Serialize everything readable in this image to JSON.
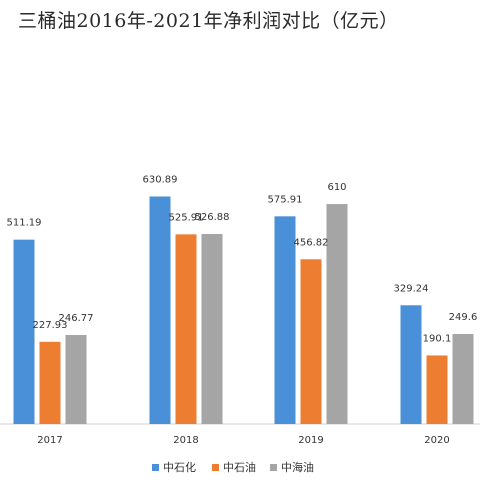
{
  "chart_data": {
    "type": "bar",
    "title": "三桶油2016年-2021年净利润对比（亿元）",
    "categories": [
      "2017",
      "2018",
      "2019",
      "2020"
    ],
    "series": [
      {
        "name": "中石化",
        "color": "#4a90d9",
        "values": [
          511.19,
          630.89,
          575.91,
          329.24
        ],
        "labels": [
          "511.19",
          "630.89",
          "575.91",
          "329.24"
        ]
      },
      {
        "name": "中石油",
        "color": "#ed7d31",
        "values": [
          227.93,
          525.91,
          456.82,
          190.1
        ],
        "labels": [
          "227.93",
          "525.91",
          "456.82",
          "190.1"
        ]
      },
      {
        "name": "中海油",
        "color": "#a5a5a5",
        "values": [
          246.77,
          526.88,
          610,
          249.6
        ],
        "labels": [
          "246.77",
          "526.88",
          "610",
          "249.6"
        ]
      }
    ],
    "xlabel": "",
    "ylabel": "",
    "ylim": [
      0,
      660
    ],
    "legend_position": "bottom"
  }
}
